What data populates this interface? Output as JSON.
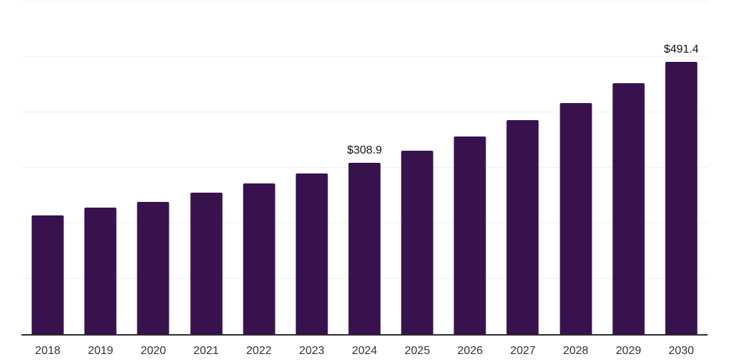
{
  "chart_data": {
    "type": "bar",
    "title": "",
    "xlabel": "",
    "ylabel": "",
    "categories": [
      "2018",
      "2019",
      "2020",
      "2021",
      "2022",
      "2023",
      "2024",
      "2025",
      "2026",
      "2027",
      "2028",
      "2029",
      "2030"
    ],
    "values": [
      214.1,
      228.0,
      238.5,
      255.2,
      271.9,
      289.8,
      308.9,
      330.9,
      356.3,
      386.0,
      416.9,
      452.6,
      491.4
    ],
    "bar_labels": {
      "2024": "$308.9",
      "2030": "$491.4"
    },
    "ylim": [
      0,
      600
    ],
    "gridline_step": 100,
    "grid": true,
    "legend": "none",
    "colors": {
      "bar": "#37124d",
      "gridline": "#f0f0f0",
      "axis_line": "#2d2d2d",
      "tick_label": "#333333",
      "value_label": "#111111",
      "background": "#ffffff"
    }
  }
}
